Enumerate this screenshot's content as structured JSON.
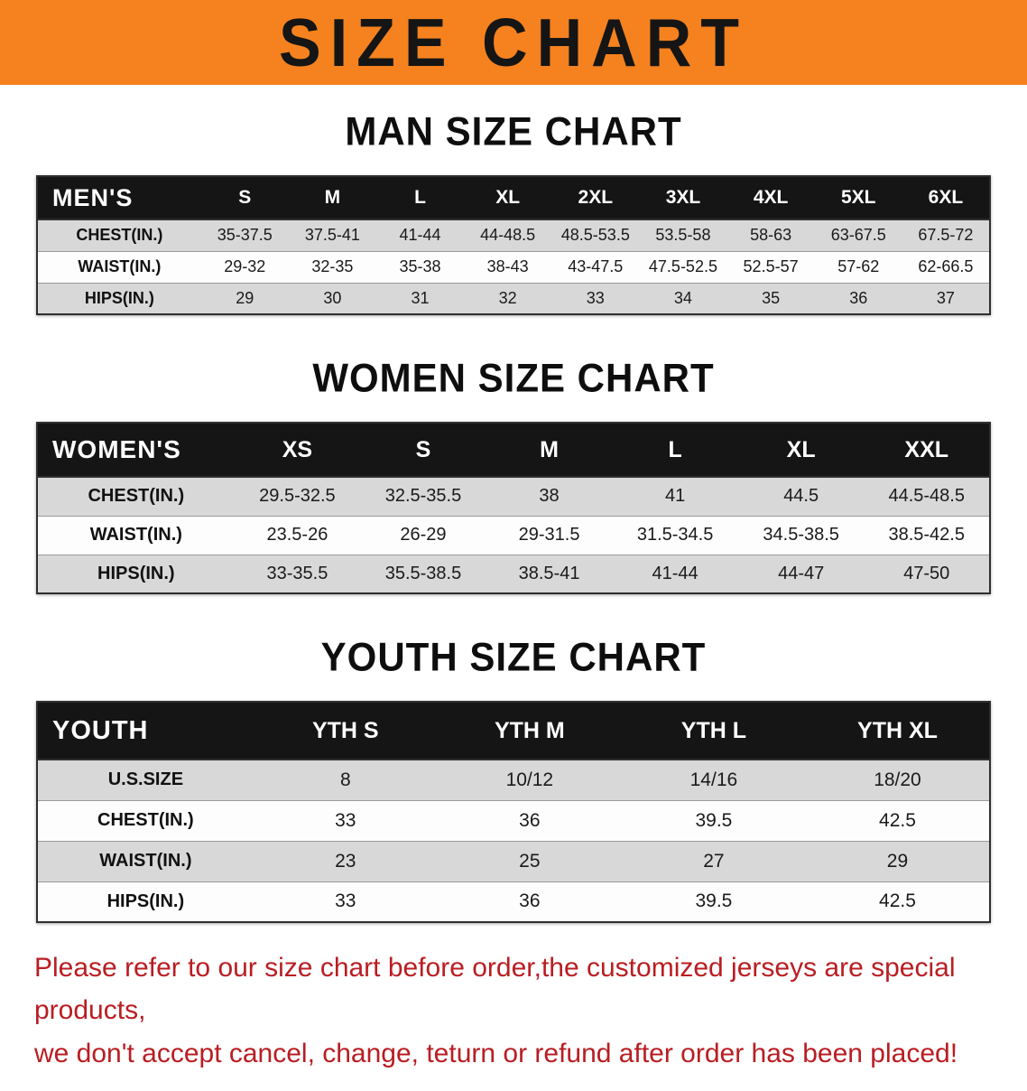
{
  "banner": {
    "title": "SIZE CHART"
  },
  "colors": {
    "banner_bg": "#F5821F",
    "header_bg": "#151515",
    "row_alt": "#D8D8D8",
    "row_base": "#FDFDFD",
    "disclaimer_color": "#B91D22"
  },
  "sections": [
    {
      "id": "men",
      "heading": "MAN SIZE CHART",
      "table": {
        "header": [
          "MEN'S",
          "S",
          "M",
          "L",
          "XL",
          "2XL",
          "3XL",
          "4XL",
          "5XL",
          "6XL"
        ],
        "rows": [
          [
            "CHEST(IN.)",
            "35-37.5",
            "37.5-41",
            "41-44",
            "44-48.5",
            "48.5-53.5",
            "53.5-58",
            "58-63",
            "63-67.5",
            "67.5-72"
          ],
          [
            "WAIST(IN.)",
            "29-32",
            "32-35",
            "35-38",
            "38-43",
            "43-47.5",
            "47.5-52.5",
            "52.5-57",
            "57-62",
            "62-66.5"
          ],
          [
            "HIPS(IN.)",
            "29",
            "30",
            "31",
            "32",
            "33",
            "34",
            "35",
            "36",
            "37"
          ]
        ]
      }
    },
    {
      "id": "women",
      "heading": "WOMEN SIZE CHART",
      "table": {
        "header": [
          "WOMEN'S",
          "XS",
          "S",
          "M",
          "L",
          "XL",
          "XXL"
        ],
        "rows": [
          [
            "CHEST(IN.)",
            "29.5-32.5",
            "32.5-35.5",
            "38",
            "41",
            "44.5",
            "44.5-48.5"
          ],
          [
            "WAIST(IN.)",
            "23.5-26",
            "26-29",
            "29-31.5",
            "31.5-34.5",
            "34.5-38.5",
            "38.5-42.5"
          ],
          [
            "HIPS(IN.)",
            "33-35.5",
            "35.5-38.5",
            "38.5-41",
            "41-44",
            "44-47",
            "47-50"
          ]
        ]
      }
    },
    {
      "id": "youth",
      "heading": "YOUTH SIZE CHART",
      "table": {
        "header": [
          "YOUTH",
          "YTH S",
          "YTH M",
          "YTH L",
          "YTH XL"
        ],
        "rows": [
          [
            "U.S.SIZE",
            "8",
            "10/12",
            "14/16",
            "18/20"
          ],
          [
            "CHEST(IN.)",
            "33",
            "36",
            "39.5",
            "42.5"
          ],
          [
            "WAIST(IN.)",
            "23",
            "25",
            "27",
            "29"
          ],
          [
            "HIPS(IN.)",
            "33",
            "36",
            "39.5",
            "42.5"
          ]
        ]
      }
    }
  ],
  "disclaimer": {
    "lines": [
      "Please refer to our size chart before order,the customized jerseys are special products,",
      "we don't accept cancel, change, teturn or refund after order has been placed!"
    ]
  }
}
